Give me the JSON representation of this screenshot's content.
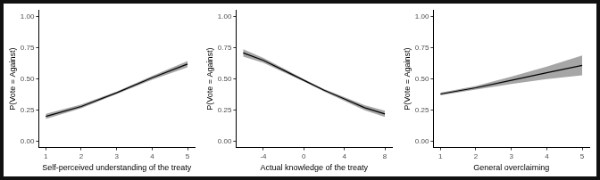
{
  "chart_data": [
    {
      "type": "line",
      "x_label": "Self-perceived understanding of the treaty",
      "y_label": "P(Vote = Against)",
      "x": [
        1,
        2,
        3,
        4,
        5
      ],
      "values": [
        0.2,
        0.28,
        0.39,
        0.51,
        0.62
      ],
      "ci_lower": [
        0.18,
        0.265,
        0.38,
        0.495,
        0.595
      ],
      "ci_upper": [
        0.22,
        0.295,
        0.4,
        0.525,
        0.645
      ],
      "color": "#000000",
      "band_color": "#a6a6a6",
      "xlim": [
        0.8,
        5.2
      ],
      "xticks": [
        1,
        2,
        3,
        4,
        5
      ],
      "ylim": [
        -0.05,
        1.05
      ],
      "yticks": [
        {
          "value": 0,
          "label": "0.00"
        },
        {
          "value": 0.25,
          "label": "0.25"
        },
        {
          "value": 0.5,
          "label": "0.50"
        },
        {
          "value": 0.75,
          "label": "0.75"
        },
        {
          "value": 1,
          "label": "1.00"
        }
      ],
      "grid": false
    },
    {
      "type": "line",
      "x_label": "Actual knowledge of the treaty",
      "y_label": "P(Vote = Against)",
      "x": [
        -6,
        -4,
        -2,
        0,
        2,
        4,
        6,
        8
      ],
      "values": [
        0.71,
        0.65,
        0.57,
        0.49,
        0.41,
        0.34,
        0.27,
        0.22
      ],
      "ci_lower": [
        0.68,
        0.63,
        0.555,
        0.48,
        0.4,
        0.325,
        0.25,
        0.195
      ],
      "ci_upper": [
        0.74,
        0.67,
        0.585,
        0.5,
        0.42,
        0.355,
        0.29,
        0.245
      ],
      "color": "#000000",
      "band_color": "#a6a6a6",
      "xlim": [
        -6.7,
        8.7
      ],
      "xticks": [
        -4,
        0,
        4,
        8
      ],
      "ylim": [
        -0.05,
        1.05
      ],
      "yticks": [
        {
          "value": 0,
          "label": "0.00"
        },
        {
          "value": 0.25,
          "label": "0.25"
        },
        {
          "value": 0.5,
          "label": "0.50"
        },
        {
          "value": 0.75,
          "label": "0.75"
        },
        {
          "value": 1,
          "label": "1.00"
        }
      ],
      "grid": false
    },
    {
      "type": "line",
      "x_label": "General overclaiming",
      "y_label": "P(Vote = Against)",
      "x": [
        1,
        2,
        3,
        4,
        5
      ],
      "values": [
        0.38,
        0.43,
        0.49,
        0.55,
        0.61
      ],
      "ci_lower": [
        0.37,
        0.415,
        0.46,
        0.5,
        0.53
      ],
      "ci_upper": [
        0.39,
        0.445,
        0.52,
        0.6,
        0.69
      ],
      "color": "#000000",
      "band_color": "#a6a6a6",
      "xlim": [
        0.8,
        5.2
      ],
      "xticks": [
        1,
        2,
        3,
        4,
        5
      ],
      "ylim": [
        -0.05,
        1.05
      ],
      "yticks": [
        {
          "value": 0,
          "label": "0.00"
        },
        {
          "value": 0.25,
          "label": "0.25"
        },
        {
          "value": 0.5,
          "label": "0.50"
        },
        {
          "value": 0.75,
          "label": "0.75"
        },
        {
          "value": 1,
          "label": "1.00"
        }
      ],
      "grid": false
    }
  ]
}
